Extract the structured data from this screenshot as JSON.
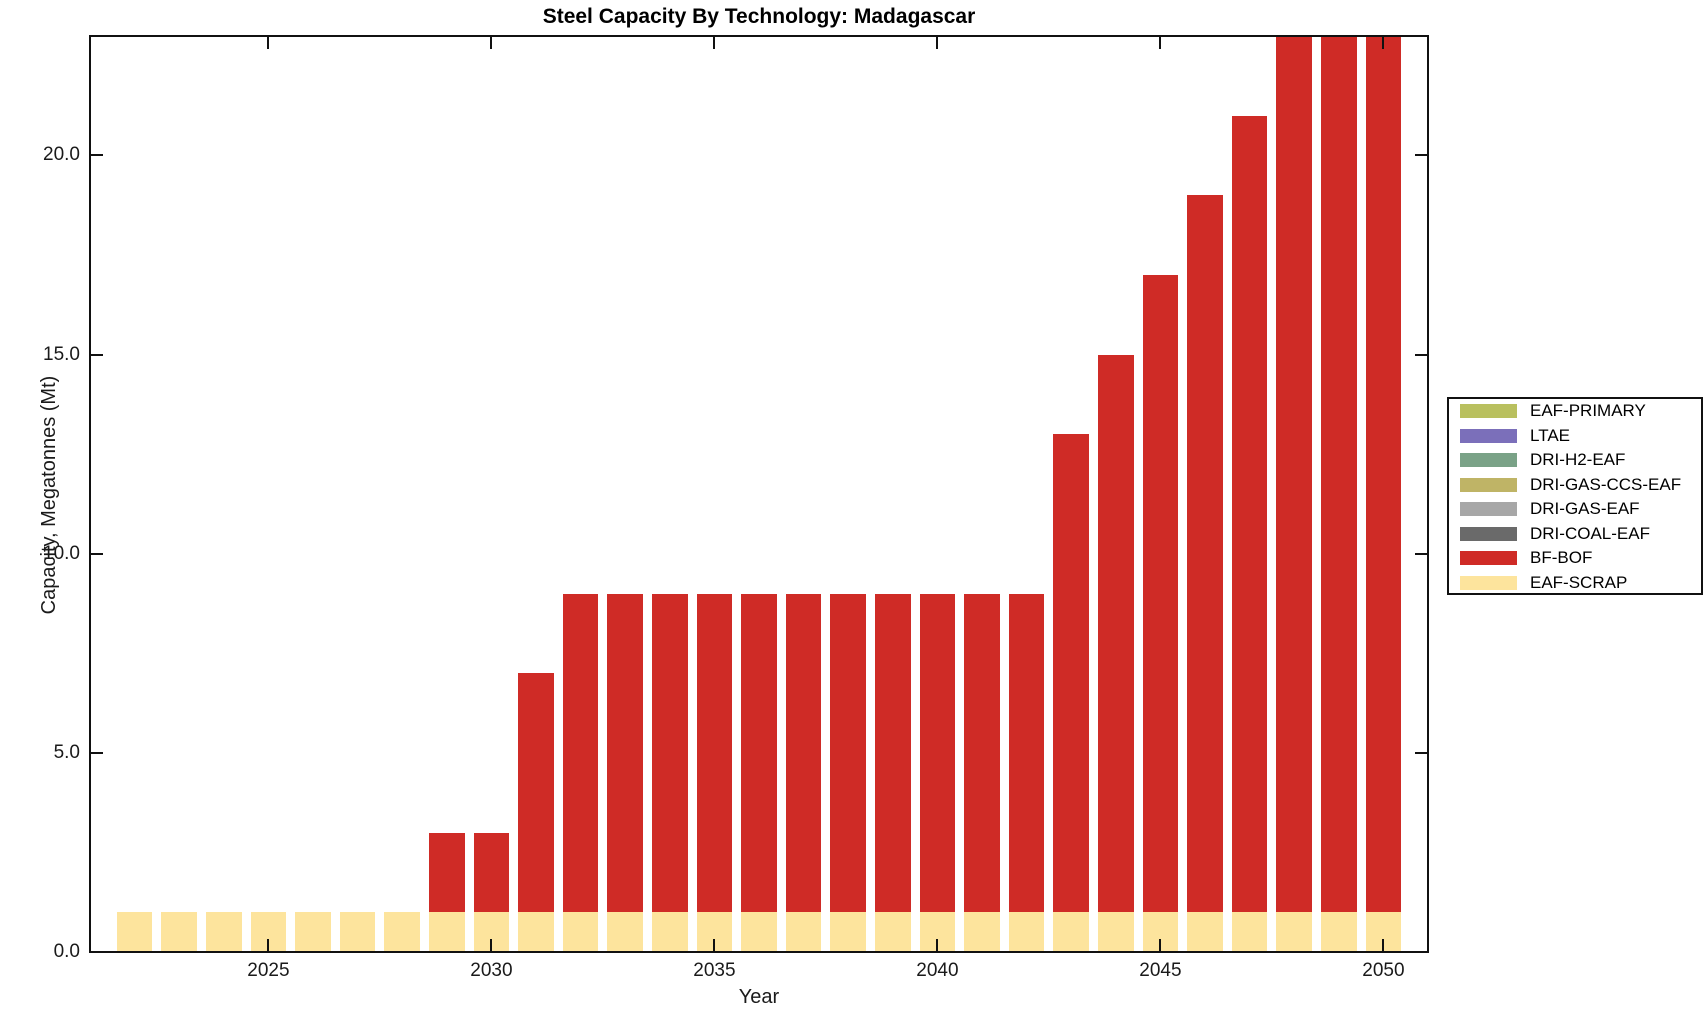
{
  "figure": {
    "title": "Steel Capacity By Technology: Madagascar",
    "xlabel": "Year",
    "ylabel": "Capacity, Megatonnes (Mt)"
  },
  "chart_data": {
    "type": "bar",
    "stacked": true,
    "title": "Steel Capacity By Technology: Madagascar",
    "xlabel": "Year",
    "ylabel": "Capacity, Megatonnes (Mt)",
    "grid": false,
    "legend_position": "right-outside",
    "background_color": "#ffffff",
    "axis_color": "#111111",
    "x": [
      2022,
      2023,
      2024,
      2025,
      2026,
      2027,
      2028,
      2029,
      2030,
      2031,
      2032,
      2033,
      2034,
      2035,
      2036,
      2037,
      2038,
      2039,
      2040,
      2041,
      2042,
      2043,
      2044,
      2045,
      2046,
      2047,
      2048,
      2049,
      2050
    ],
    "xlim": [
      2021,
      2051
    ],
    "ylim": [
      0,
      23
    ],
    "xticks": [
      2025,
      2030,
      2035,
      2040,
      2045,
      2050
    ],
    "yticks": [
      0,
      5,
      10,
      15,
      20
    ],
    "ytick_labels": [
      "0.0",
      "5.0",
      "10.0",
      "15.0",
      "20.0"
    ],
    "bar_width_fraction": 0.8,
    "stack_order": "last-series-at-bottom",
    "series": [
      {
        "name": "EAF-PRIMARY",
        "color": "#b9c05f",
        "values": [
          0,
          0,
          0,
          0,
          0,
          0,
          0,
          0,
          0,
          0,
          0,
          0,
          0,
          0,
          0,
          0,
          0,
          0,
          0,
          0,
          0,
          0,
          0,
          0,
          0,
          0,
          0,
          0,
          0
        ]
      },
      {
        "name": "LTAE",
        "color": "#7b6fba",
        "values": [
          0,
          0,
          0,
          0,
          0,
          0,
          0,
          0,
          0,
          0,
          0,
          0,
          0,
          0,
          0,
          0,
          0,
          0,
          0,
          0,
          0,
          0,
          0,
          0,
          0,
          0,
          0,
          0,
          0
        ]
      },
      {
        "name": "DRI-H2-EAF",
        "color": "#7aa287",
        "values": [
          0,
          0,
          0,
          0,
          0,
          0,
          0,
          0,
          0,
          0,
          0,
          0,
          0,
          0,
          0,
          0,
          0,
          0,
          0,
          0,
          0,
          0,
          0,
          0,
          0,
          0,
          0,
          0,
          0
        ]
      },
      {
        "name": "DRI-GAS-CCS-EAF",
        "color": "#bfb466",
        "values": [
          0,
          0,
          0,
          0,
          0,
          0,
          0,
          0,
          0,
          0,
          0,
          0,
          0,
          0,
          0,
          0,
          0,
          0,
          0,
          0,
          0,
          0,
          0,
          0,
          0,
          0,
          0,
          0,
          0
        ]
      },
      {
        "name": "DRI-GAS-EAF",
        "color": "#a7a7a7",
        "values": [
          0,
          0,
          0,
          0,
          0,
          0,
          0,
          0,
          0,
          0,
          0,
          0,
          0,
          0,
          0,
          0,
          0,
          0,
          0,
          0,
          0,
          0,
          0,
          0,
          0,
          0,
          0,
          0,
          0
        ]
      },
      {
        "name": "DRI-COAL-EAF",
        "color": "#6a6a6a",
        "values": [
          0,
          0,
          0,
          0,
          0,
          0,
          0,
          0,
          0,
          0,
          0,
          0,
          0,
          0,
          0,
          0,
          0,
          0,
          0,
          0,
          0,
          0,
          0,
          0,
          0,
          0,
          0,
          0,
          0
        ]
      },
      {
        "name": "BF-BOF",
        "color": "#cf2b26",
        "values": [
          0,
          0,
          0,
          0,
          0,
          0,
          0,
          2,
          2,
          6,
          8,
          8,
          8,
          8,
          8,
          8,
          8,
          8,
          8,
          8,
          8,
          12,
          14,
          16,
          18,
          20,
          22,
          22,
          22
        ]
      },
      {
        "name": "EAF-SCRAP",
        "color": "#fde49d",
        "values": [
          1,
          1,
          1,
          1,
          1,
          1,
          1,
          1,
          1,
          1,
          1,
          1,
          1,
          1,
          1,
          1,
          1,
          1,
          1,
          1,
          1,
          1,
          1,
          1,
          1,
          1,
          1,
          1,
          1
        ]
      }
    ]
  }
}
